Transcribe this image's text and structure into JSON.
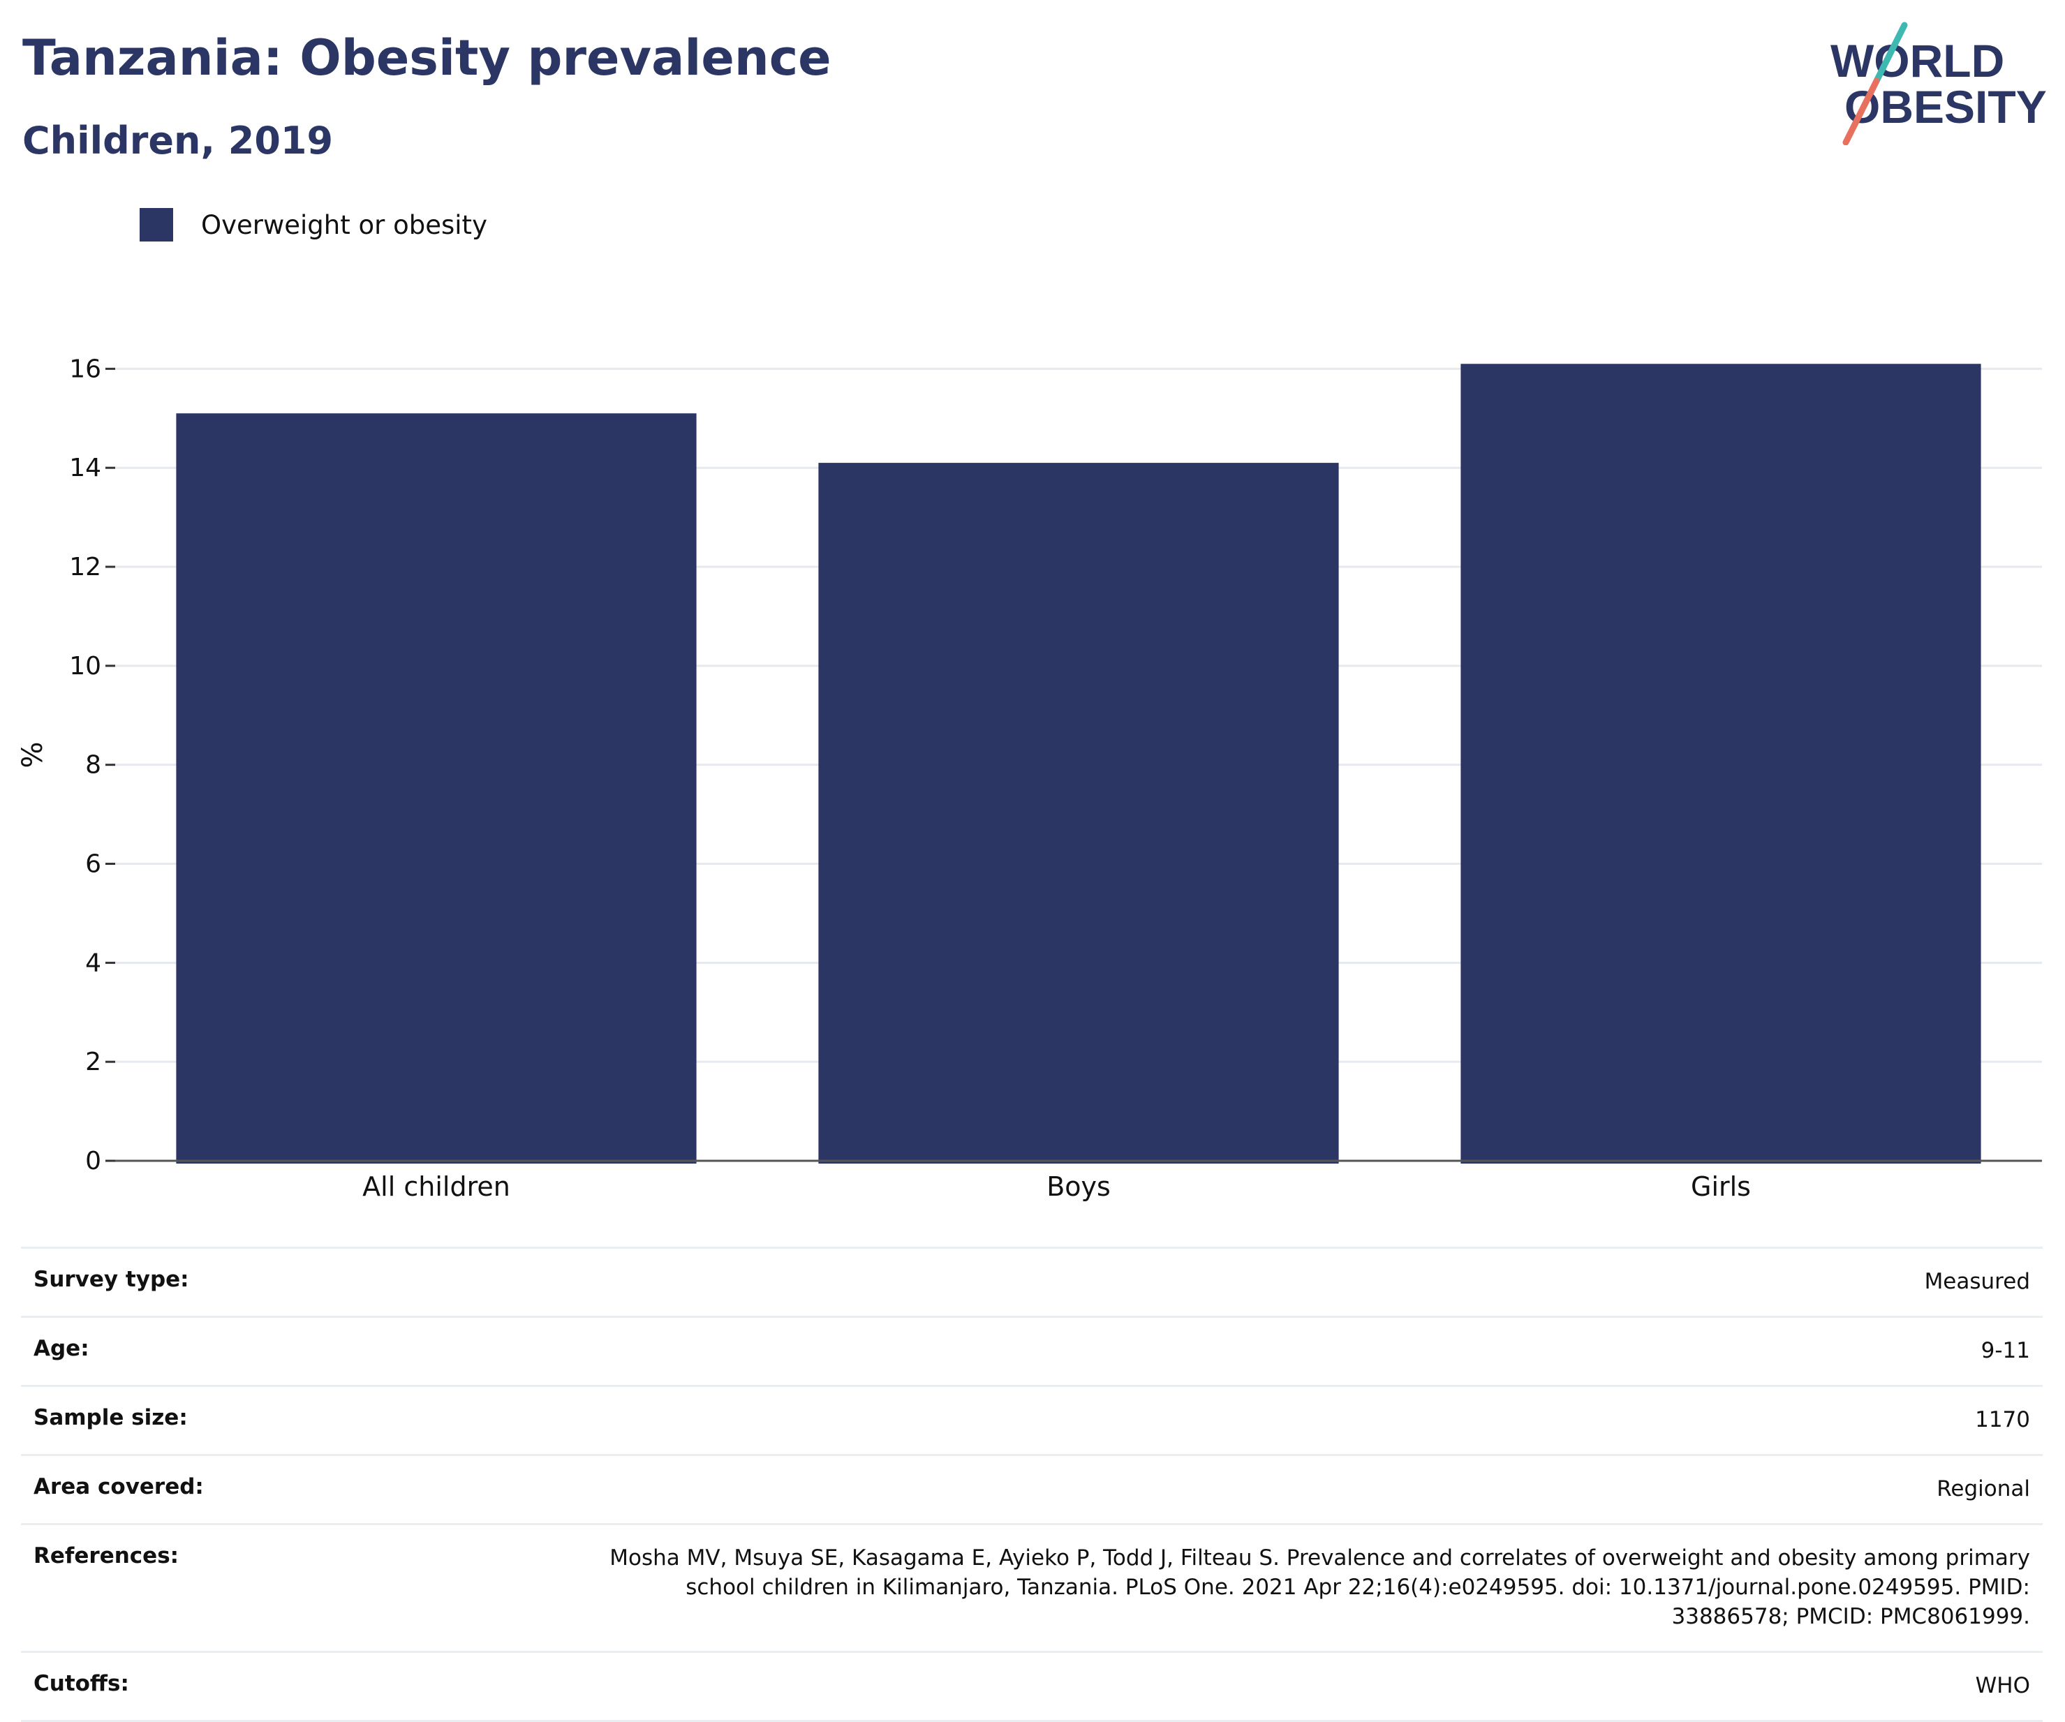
{
  "header": {
    "title": "Tanzania: Obesity prevalence",
    "subtitle": "Children, 2019"
  },
  "logo": {
    "line1": "WORLD",
    "line2": "OBESITY"
  },
  "legend": {
    "label": "Overweight or obesity",
    "color": "#2b3664"
  },
  "chart_data": {
    "type": "bar",
    "title": "Tanzania: Obesity prevalence",
    "subtitle": "Children, 2019",
    "categories": [
      "All children",
      "Boys",
      "Girls"
    ],
    "series": [
      {
        "name": "Overweight or obesity",
        "values": [
          15.1,
          14.1,
          16.1
        ],
        "color": "#2b3664"
      }
    ],
    "xlabel": "",
    "ylabel": "%",
    "ylim": [
      0,
      16.4
    ],
    "yticks": [
      0,
      2,
      4,
      6,
      8,
      10,
      12,
      14,
      16
    ],
    "grid": true,
    "legend_position": "top-left"
  },
  "survey": {
    "rows": [
      {
        "label": "Survey type:",
        "value": "Measured"
      },
      {
        "label": "Age:",
        "value": "9-11"
      },
      {
        "label": "Sample size:",
        "value": "1170"
      },
      {
        "label": "Area covered:",
        "value": "Regional"
      },
      {
        "label": "References:",
        "value": "Mosha MV, Msuya SE, Kasagama E, Ayieko P, Todd J, Filteau S. Prevalence and correlates of overweight and obesity among primary school children in Kilimanjaro, Tanzania. PLoS One. 2021 Apr 22;16(4):e0249595. doi: 10.1371/journal.pone.0249595. PMID: 33886578; PMCID: PMC8061999."
      },
      {
        "label": "Cutoffs:",
        "value": "WHO"
      }
    ]
  }
}
